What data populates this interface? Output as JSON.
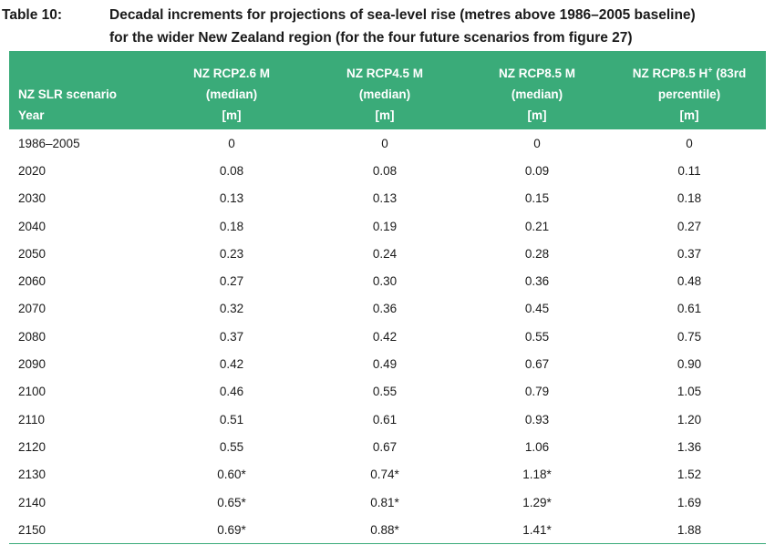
{
  "caption": {
    "label": "Table 10:",
    "line1": "Decadal increments for projections of sea-level rise (metres above 1986–2005 baseline)",
    "line2": "for the wider New Zealand region (for the four future scenarios from figure 27)"
  },
  "header": {
    "col0": {
      "line1": "NZ SLR scenario",
      "line2": "Year"
    },
    "col1": {
      "line1": "NZ RCP2.6 M",
      "line2": "(median)",
      "line3": "[m]"
    },
    "col2": {
      "line1": "NZ RCP4.5 M",
      "line2": "(median)",
      "line3": "[m]"
    },
    "col3": {
      "line1": "NZ RCP8.5 M",
      "line2": "(median)",
      "line3": "[m]"
    },
    "col4": {
      "line1a": "NZ RCP8.5 H",
      "sup": "+",
      "line1b": " (83rd",
      "line2": "percentile)",
      "line3": "[m]"
    }
  },
  "rows": [
    [
      "1986–2005",
      "0",
      "0",
      "0",
      "0"
    ],
    [
      "2020",
      "0.08",
      "0.08",
      "0.09",
      "0.11"
    ],
    [
      "2030",
      "0.13",
      "0.13",
      "0.15",
      "0.18"
    ],
    [
      "2040",
      "0.18",
      "0.19",
      "0.21",
      "0.27"
    ],
    [
      "2050",
      "0.23",
      "0.24",
      "0.28",
      "0.37"
    ],
    [
      "2060",
      "0.27",
      "0.30",
      "0.36",
      "0.48"
    ],
    [
      "2070",
      "0.32",
      "0.36",
      "0.45",
      "0.61"
    ],
    [
      "2080",
      "0.37",
      "0.42",
      "0.55",
      "0.75"
    ],
    [
      "2090",
      "0.42",
      "0.49",
      "0.67",
      "0.90"
    ],
    [
      "2100",
      "0.46",
      "0.55",
      "0.79",
      "1.05"
    ],
    [
      "2110",
      "0.51",
      "0.61",
      "0.93",
      "1.20"
    ],
    [
      "2120",
      "0.55",
      "0.67",
      "1.06",
      "1.36"
    ],
    [
      "2130",
      "0.60*",
      "0.74*",
      "1.18*",
      "1.52"
    ],
    [
      "2140",
      "0.65*",
      "0.81*",
      "1.29*",
      "1.69"
    ],
    [
      "2150",
      "0.69*",
      "0.88*",
      "1.41*",
      "1.88"
    ]
  ],
  "colors": {
    "header_bg": "#3aab79",
    "header_text": "#ffffff"
  }
}
